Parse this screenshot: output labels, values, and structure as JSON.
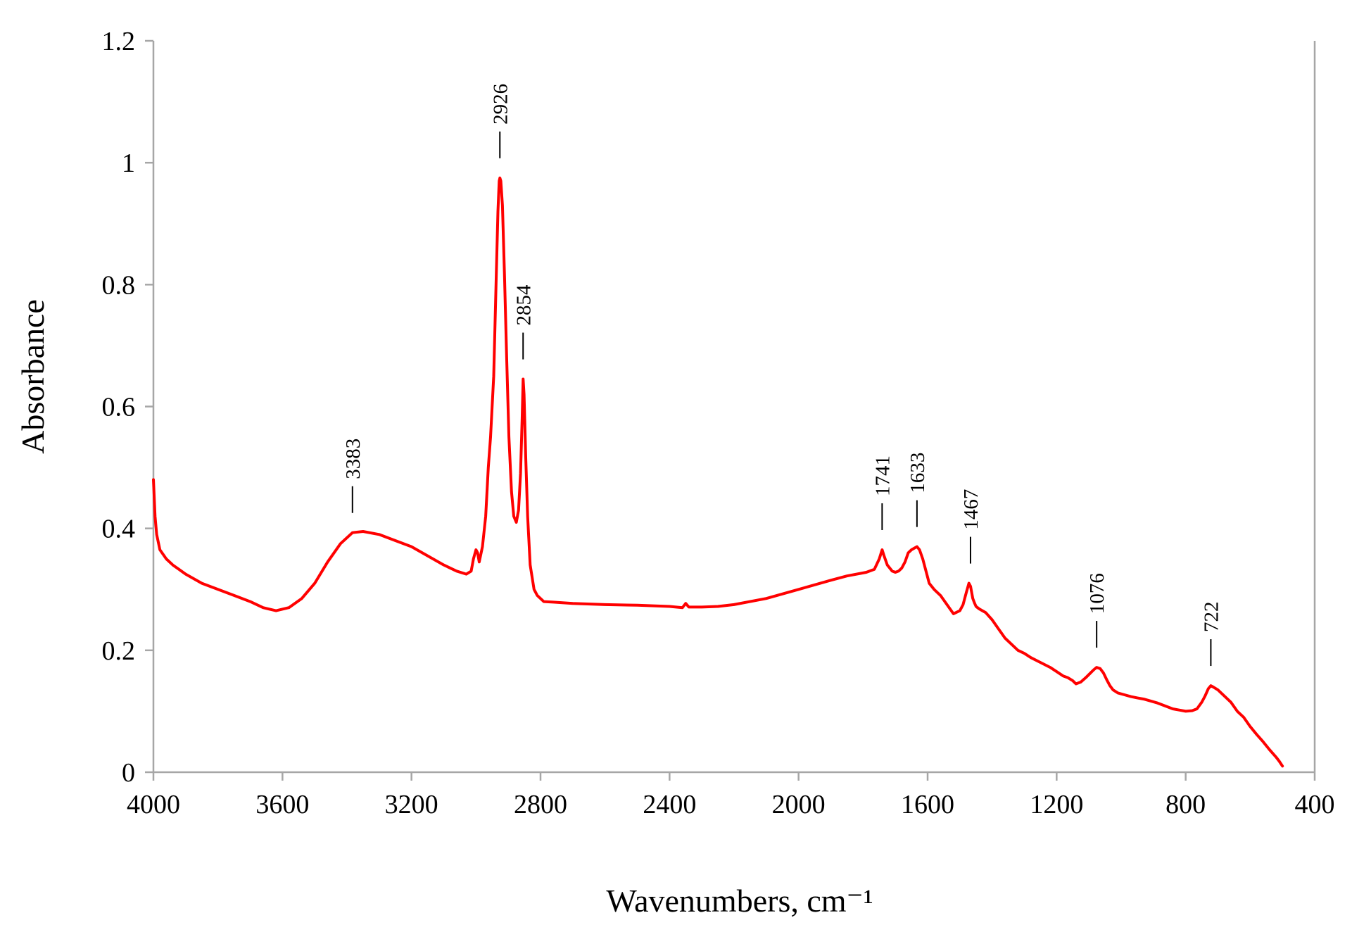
{
  "chart_data": {
    "type": "line",
    "title": "",
    "xlabel": "Wavenumbers, cm⁻¹",
    "ylabel": "Absorbance",
    "xlim": [
      4000,
      400
    ],
    "ylim": [
      0,
      1.2
    ],
    "x_reversed": true,
    "grid": false,
    "legend": "none",
    "x_ticks": [
      4000,
      3600,
      3200,
      2800,
      2400,
      2000,
      1600,
      1200,
      800,
      400
    ],
    "x_tick_labels": [
      "4000",
      "3600",
      "3200",
      "2800",
      "2400",
      "2000",
      "1600",
      "1200",
      "800",
      "400"
    ],
    "y_ticks": [
      0,
      0.2,
      0.4,
      0.6,
      0.8,
      1.0,
      1.2
    ],
    "y_tick_labels": [
      "0",
      "0.2",
      "0.4",
      "0.6",
      "0.8",
      "1",
      "1.2"
    ],
    "series": [
      {
        "color": "#ff0000",
        "x": [
          4000,
          3995,
          3990,
          3980,
          3960,
          3940,
          3900,
          3850,
          3800,
          3750,
          3700,
          3660,
          3620,
          3580,
          3540,
          3500,
          3460,
          3420,
          3383,
          3350,
          3300,
          3250,
          3200,
          3150,
          3100,
          3060,
          3030,
          3015,
          3008,
          3000,
          2995,
          2990,
          2980,
          2970,
          2962,
          2955,
          2945,
          2938,
          2932,
          2928,
          2926,
          2923,
          2918,
          2912,
          2905,
          2898,
          2890,
          2883,
          2875,
          2868,
          2862,
          2857,
          2854,
          2851,
          2846,
          2840,
          2832,
          2820,
          2810,
          2790,
          2760,
          2700,
          2600,
          2500,
          2400,
          2360,
          2350,
          2340,
          2300,
          2250,
          2200,
          2100,
          2000,
          1900,
          1850,
          1790,
          1765,
          1750,
          1741,
          1735,
          1725,
          1710,
          1700,
          1690,
          1680,
          1670,
          1660,
          1650,
          1640,
          1633,
          1625,
          1615,
          1605,
          1595,
          1580,
          1560,
          1540,
          1520,
          1500,
          1490,
          1480,
          1472,
          1467,
          1460,
          1455,
          1450,
          1440,
          1420,
          1400,
          1380,
          1360,
          1340,
          1320,
          1300,
          1280,
          1250,
          1220,
          1200,
          1180,
          1165,
          1150,
          1140,
          1125,
          1110,
          1095,
          1085,
          1076,
          1065,
          1055,
          1045,
          1035,
          1025,
          1010,
          990,
          970,
          950,
          930,
          910,
          890,
          870,
          855,
          840,
          820,
          800,
          780,
          765,
          750,
          740,
          730,
          722,
          715,
          700,
          680,
          660,
          640,
          620,
          600,
          580,
          560,
          540,
          520,
          510,
          500
        ],
        "y": [
          0.48,
          0.42,
          0.39,
          0.365,
          0.35,
          0.34,
          0.325,
          0.31,
          0.3,
          0.29,
          0.28,
          0.27,
          0.265,
          0.27,
          0.285,
          0.31,
          0.345,
          0.375,
          0.393,
          0.395,
          0.39,
          0.38,
          0.37,
          0.355,
          0.34,
          0.33,
          0.325,
          0.33,
          0.35,
          0.365,
          0.36,
          0.345,
          0.37,
          0.42,
          0.5,
          0.55,
          0.65,
          0.8,
          0.92,
          0.97,
          0.975,
          0.97,
          0.93,
          0.82,
          0.68,
          0.55,
          0.46,
          0.42,
          0.41,
          0.43,
          0.49,
          0.58,
          0.645,
          0.62,
          0.52,
          0.42,
          0.34,
          0.3,
          0.29,
          0.28,
          0.279,
          0.277,
          0.275,
          0.274,
          0.272,
          0.27,
          0.277,
          0.271,
          0.271,
          0.272,
          0.275,
          0.285,
          0.3,
          0.315,
          0.322,
          0.328,
          0.333,
          0.35,
          0.365,
          0.355,
          0.34,
          0.33,
          0.328,
          0.33,
          0.335,
          0.345,
          0.36,
          0.365,
          0.368,
          0.37,
          0.365,
          0.35,
          0.33,
          0.31,
          0.3,
          0.29,
          0.275,
          0.26,
          0.265,
          0.275,
          0.295,
          0.31,
          0.305,
          0.285,
          0.278,
          0.272,
          0.268,
          0.262,
          0.25,
          0.235,
          0.22,
          0.21,
          0.2,
          0.195,
          0.188,
          0.18,
          0.172,
          0.165,
          0.158,
          0.155,
          0.15,
          0.145,
          0.148,
          0.155,
          0.163,
          0.168,
          0.172,
          0.17,
          0.163,
          0.152,
          0.142,
          0.135,
          0.13,
          0.127,
          0.124,
          0.122,
          0.12,
          0.117,
          0.114,
          0.11,
          0.107,
          0.104,
          0.102,
          0.1,
          0.101,
          0.104,
          0.115,
          0.125,
          0.137,
          0.142,
          0.14,
          0.135,
          0.125,
          0.115,
          0.1,
          0.09,
          0.075,
          0.062,
          0.05,
          0.037,
          0.025,
          0.018,
          0.01
        ]
      }
    ],
    "annotations": [
      {
        "text": "3383",
        "x": 3383,
        "y": 0.393
      },
      {
        "text": "2926",
        "x": 2926,
        "y": 0.975
      },
      {
        "text": "2854",
        "x": 2854,
        "y": 0.645
      },
      {
        "text": "1741",
        "x": 1741,
        "y": 0.365
      },
      {
        "text": "1633",
        "x": 1633,
        "y": 0.37
      },
      {
        "text": "1467",
        "x": 1467,
        "y": 0.31
      },
      {
        "text": "1076",
        "x": 1076,
        "y": 0.172
      },
      {
        "text": "722",
        "x": 722,
        "y": 0.142
      }
    ]
  }
}
